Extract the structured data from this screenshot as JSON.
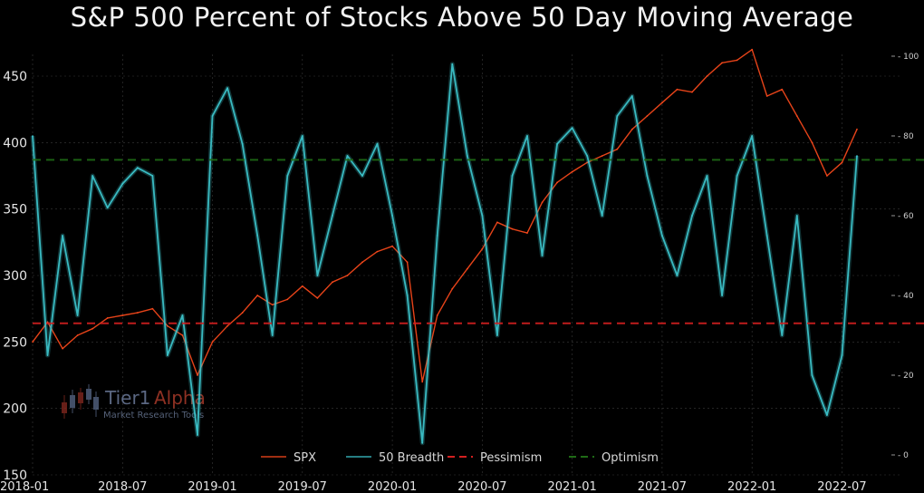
{
  "chart_data": {
    "type": "line",
    "title": "S&P 500 Percent of Stocks Above 50 Day Moving Average",
    "x_ticks": [
      "2018-01",
      "2018-07",
      "2019-01",
      "2019-07",
      "2020-01",
      "2020-07",
      "2021-01",
      "2021-07",
      "2022-01",
      "2022-07"
    ],
    "left_axis": {
      "ticks": [
        150,
        200,
        250,
        300,
        350,
        400,
        450
      ],
      "ylim": [
        150,
        480
      ]
    },
    "right_axis": {
      "ticks": [
        0,
        20,
        40,
        60,
        80,
        100
      ],
      "ylim": [
        -5,
        105
      ]
    },
    "grid": true,
    "legend_position": "bottom-center",
    "series": [
      {
        "name": "SPX",
        "axis": "left",
        "color": "#ff4a1c",
        "x": [
          "2018-01",
          "2018-02",
          "2018-03",
          "2018-04",
          "2018-05",
          "2018-06",
          "2018-07",
          "2018-08",
          "2018-09",
          "2018-10",
          "2018-11",
          "2018-12",
          "2019-01",
          "2019-02",
          "2019-03",
          "2019-04",
          "2019-05",
          "2019-06",
          "2019-07",
          "2019-08",
          "2019-09",
          "2019-10",
          "2019-11",
          "2019-12",
          "2020-01",
          "2020-02",
          "2020-03",
          "2020-04",
          "2020-05",
          "2020-06",
          "2020-07",
          "2020-08",
          "2020-09",
          "2020-10",
          "2020-11",
          "2020-12",
          "2021-01",
          "2021-02",
          "2021-03",
          "2021-04",
          "2021-05",
          "2021-06",
          "2021-07",
          "2021-08",
          "2021-09",
          "2021-10",
          "2021-11",
          "2021-12",
          "2022-01",
          "2022-02",
          "2022-03",
          "2022-04",
          "2022-05",
          "2022-06",
          "2022-07",
          "2022-08"
        ],
        "values": [
          250,
          265,
          245,
          255,
          260,
          268,
          270,
          272,
          275,
          262,
          255,
          225,
          250,
          262,
          272,
          285,
          278,
          282,
          292,
          283,
          295,
          300,
          310,
          318,
          322,
          310,
          220,
          270,
          290,
          305,
          320,
          340,
          335,
          332,
          355,
          370,
          378,
          385,
          390,
          395,
          410,
          420,
          430,
          440,
          438,
          450,
          460,
          462,
          470,
          435,
          440,
          420,
          400,
          375,
          385,
          410
        ]
      },
      {
        "name": "50 Breadth",
        "axis": "right",
        "color": "#3ec9d0",
        "x": [
          "2018-01",
          "2018-02",
          "2018-03",
          "2018-04",
          "2018-05",
          "2018-06",
          "2018-07",
          "2018-08",
          "2018-09",
          "2018-10",
          "2018-11",
          "2018-12",
          "2019-01",
          "2019-02",
          "2019-03",
          "2019-04",
          "2019-05",
          "2019-06",
          "2019-07",
          "2019-08",
          "2019-09",
          "2019-10",
          "2019-11",
          "2019-12",
          "2020-01",
          "2020-02",
          "2020-03",
          "2020-04",
          "2020-05",
          "2020-06",
          "2020-07",
          "2020-08",
          "2020-09",
          "2020-10",
          "2020-11",
          "2020-12",
          "2021-01",
          "2021-02",
          "2021-03",
          "2021-04",
          "2021-05",
          "2021-06",
          "2021-07",
          "2021-08",
          "2021-09",
          "2021-10",
          "2021-11",
          "2021-12",
          "2022-01",
          "2022-02",
          "2022-03",
          "2022-04",
          "2022-05",
          "2022-06",
          "2022-07",
          "2022-08"
        ],
        "values": [
          80,
          25,
          55,
          35,
          70,
          62,
          68,
          72,
          70,
          25,
          35,
          5,
          85,
          92,
          78,
          55,
          30,
          70,
          80,
          45,
          60,
          75,
          70,
          78,
          60,
          40,
          3,
          55,
          98,
          75,
          60,
          30,
          70,
          80,
          50,
          78,
          82,
          75,
          60,
          85,
          90,
          70,
          55,
          45,
          60,
          70,
          40,
          70,
          80,
          55,
          30,
          60,
          20,
          10,
          25,
          75
        ]
      },
      {
        "name": "Pessimism",
        "axis": "right",
        "color": "#d42020",
        "y": 33,
        "style": "dashed"
      },
      {
        "name": "Optimism",
        "axis": "right",
        "color": "#1f6b16",
        "y": 74,
        "style": "dashed"
      }
    ]
  },
  "watermark": {
    "brand": "Tier1",
    "brand_accent": "Alpha",
    "tagline": "Market Research Tools",
    "logo": "candlestick-icon"
  }
}
